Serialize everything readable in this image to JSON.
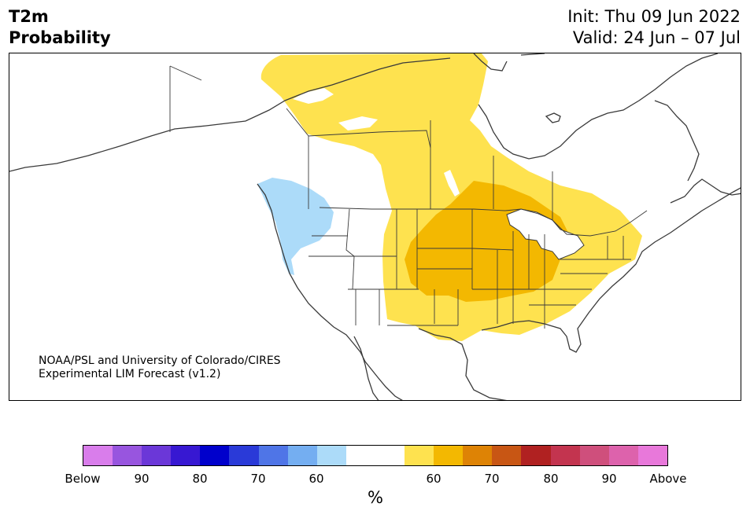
{
  "title": {
    "line1": "T2m",
    "line2": "Probability"
  },
  "dates": {
    "init": "Init: Thu 09 Jun 2022",
    "valid": "Valid: 24 Jun – 07 Jul"
  },
  "credit": {
    "line1": "NOAA/PSL and University of Colorado/CIRES",
    "line2": "Experimental LIM Forecast (v1.2)"
  },
  "colors": {
    "land_outline": "#3a3a3a",
    "below_60": "#acdbf9",
    "above_60": "#fee24f",
    "above_70": "#f3b801"
  },
  "colorbar": {
    "segments": [
      "#d97deb",
      "#9855df",
      "#6b37d8",
      "#3718d2",
      "#0000cc",
      "#2a3ad8",
      "#4f75e7",
      "#74aef1",
      "#acdbf9",
      "#ffffff",
      "#ffffff",
      "#fee24f",
      "#f3b801",
      "#de8305",
      "#c85614",
      "#b02121",
      "#c3344f",
      "#cf4f7c",
      "#dd62ac",
      "#e878da"
    ],
    "tick_labels": [
      "Below",
      "90",
      "80",
      "70",
      "60",
      "60",
      "70",
      "80",
      "90",
      "Above"
    ],
    "unit": "%"
  }
}
